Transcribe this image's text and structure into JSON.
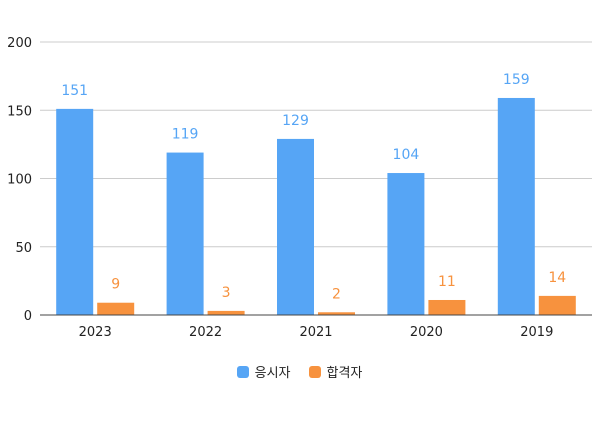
{
  "chart_data": {
    "type": "bar",
    "categories": [
      "2023",
      "2022",
      "2021",
      "2020",
      "2019"
    ],
    "series": [
      {
        "name": "응시자",
        "values": [
          151,
          119,
          129,
          104,
          159
        ],
        "color": "#56a5f5"
      },
      {
        "name": "합격자",
        "values": [
          9,
          3,
          2,
          11,
          14
        ],
        "color": "#f7923e"
      }
    ],
    "y_ticks": [
      "0",
      "50",
      "100",
      "150",
      "200"
    ],
    "ylim": [
      0,
      200
    ],
    "grid": true,
    "legend_position": "bottom",
    "data_labels": true
  }
}
